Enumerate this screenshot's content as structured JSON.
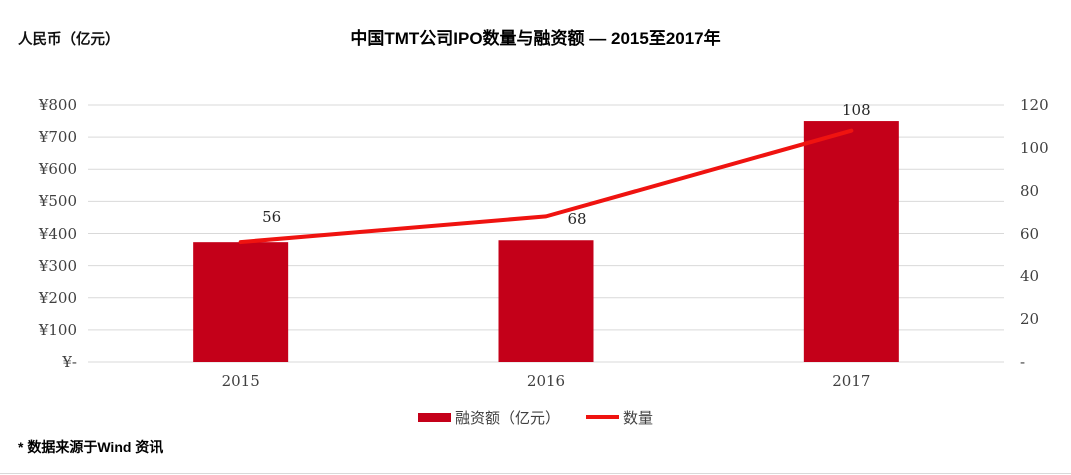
{
  "footnote": "* 数据来源于Wind 资讯",
  "colors": {
    "bar": "#c40019",
    "line": "#ef1310",
    "grid": "#d9d9d9",
    "tick_text": "#404040",
    "title_text": "#000000"
  },
  "chart_data": {
    "type": "bar",
    "title": "中国TMT公司IPO数量与融资额 — 2015至2017年",
    "categories": [
      "2015",
      "2016",
      "2017"
    ],
    "series": [
      {
        "name": "融资额（亿元）",
        "kind": "bar",
        "axis": "left",
        "values": [
          373,
          379,
          750
        ],
        "color": "#c40019"
      },
      {
        "name": "数量",
        "kind": "line",
        "axis": "right",
        "values": [
          56,
          68,
          108
        ],
        "color": "#ef1310",
        "data_labels": [
          "56",
          "68",
          "108"
        ]
      }
    ],
    "left_axis": {
      "label": "人民币（亿元）",
      "min": 0,
      "max": 800,
      "step": 100,
      "ticks": [
        "¥800",
        "¥700",
        "¥600",
        "¥500",
        "¥400",
        "¥300",
        "¥200",
        "¥100",
        "¥-"
      ]
    },
    "right_axis": {
      "min": 0,
      "max": 120,
      "step": 20,
      "ticks": [
        "120",
        "100",
        "80",
        "60",
        "40",
        "20",
        "-"
      ]
    },
    "grid": true,
    "legend_position": "bottom"
  }
}
